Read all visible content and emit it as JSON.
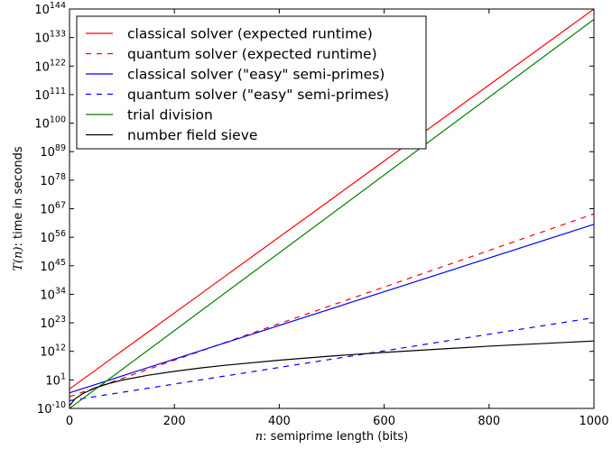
{
  "chart_data": {
    "type": "line",
    "xlabel": {
      "var": "n",
      "rest": ": semiprime length (bits)"
    },
    "ylabel": {
      "var": "T(n)",
      "rest": ": time in seconds"
    },
    "xlim": [
      0,
      1000
    ],
    "ylim_log10": [
      -10,
      144
    ],
    "x_ticks": [
      0,
      200,
      400,
      600,
      800,
      1000
    ],
    "y_ticks": [
      {
        "base": "10",
        "exp": "-10"
      },
      {
        "base": "10",
        "exp": "1"
      },
      {
        "base": "10",
        "exp": "12"
      },
      {
        "base": "10",
        "exp": "23"
      },
      {
        "base": "10",
        "exp": "34"
      },
      {
        "base": "10",
        "exp": "45"
      },
      {
        "base": "10",
        "exp": "56"
      },
      {
        "base": "10",
        "exp": "67"
      },
      {
        "base": "10",
        "exp": "78"
      },
      {
        "base": "10",
        "exp": "89"
      },
      {
        "base": "10",
        "exp": "100"
      },
      {
        "base": "10",
        "exp": "111"
      },
      {
        "base": "10",
        "exp": "122"
      },
      {
        "base": "10",
        "exp": "133"
      },
      {
        "base": "10",
        "exp": "144"
      }
    ],
    "y_scale": "log",
    "grid": false,
    "legend_position": "top-left",
    "series": [
      {
        "name": "classical solver (expected runtime)",
        "color": "#ff0000",
        "dash": "solid",
        "x": [
          0,
          1000
        ],
        "log10_y": [
          -2.5,
          144
        ]
      },
      {
        "name": "quantum solver (expected runtime)",
        "color": "#ff0000",
        "dash": "dashed",
        "x": [
          0,
          1000
        ],
        "log10_y": [
          -5.5,
          65
        ]
      },
      {
        "name": "classical solver (\"easy\" semi-primes)",
        "color": "#0000ff",
        "dash": "solid",
        "x": [
          0,
          1000
        ],
        "log10_y": [
          -4,
          61
        ]
      },
      {
        "name": "quantum solver (\"easy\" semi-primes)",
        "color": "#0000ff",
        "dash": "dashed",
        "x": [
          0,
          1000
        ],
        "log10_y": [
          -7,
          25
        ]
      },
      {
        "name": "trial division",
        "color": "#008000",
        "dash": "solid",
        "x": [
          0,
          1000
        ],
        "log10_y": [
          -10,
          140
        ]
      },
      {
        "name": "number field sieve",
        "color": "#000000",
        "dash": "solid",
        "x": [
          0,
          10,
          25,
          50,
          75,
          100,
          150,
          200,
          250,
          300,
          400,
          500,
          600,
          700,
          800,
          900,
          1000
        ],
        "log10_y": [
          -9,
          -6.4,
          -4.3,
          -2.0,
          -0.4,
          0.9,
          2.8,
          4.3,
          5.6,
          6.7,
          8.6,
          10.2,
          11.6,
          12.8,
          14.0,
          15.0,
          16.0
        ]
      }
    ]
  }
}
